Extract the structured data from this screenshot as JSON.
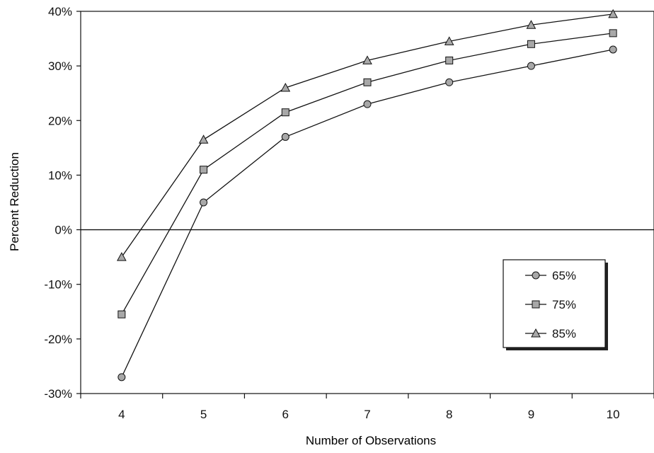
{
  "chart_data": {
    "type": "line",
    "xlabel": "Number of Observations",
    "ylabel": "Percent Reduction",
    "x": [
      4,
      5,
      6,
      7,
      8,
      9,
      10
    ],
    "xlim": [
      3.5,
      10.5
    ],
    "ylim": [
      -0.3,
      0.4
    ],
    "y_ticks": [
      -0.3,
      -0.2,
      -0.1,
      0.0,
      0.1,
      0.2,
      0.3,
      0.4
    ],
    "y_tick_labels": [
      "-30%",
      "-20%",
      "-10%",
      "0%",
      "10%",
      "20%",
      "30%",
      "40%"
    ],
    "x_tick_labels": [
      "4",
      "5",
      "6",
      "7",
      "8",
      "9",
      "10"
    ],
    "zero_line": true,
    "grid": false,
    "legend_position": "right",
    "series": [
      {
        "name": "65%",
        "marker": "circle",
        "values": [
          -0.27,
          0.05,
          0.17,
          0.23,
          0.27,
          0.3,
          0.33
        ]
      },
      {
        "name": "75%",
        "marker": "square",
        "values": [
          -0.155,
          0.11,
          0.215,
          0.27,
          0.31,
          0.34,
          0.36
        ]
      },
      {
        "name": "85%",
        "marker": "triangle",
        "values": [
          -0.05,
          0.165,
          0.26,
          0.31,
          0.345,
          0.375,
          0.395
        ]
      }
    ]
  },
  "colors": {
    "line": "#111111",
    "marker_fill": "#a8a8a8",
    "background": "#ffffff",
    "legend_shadow": "#222222"
  }
}
